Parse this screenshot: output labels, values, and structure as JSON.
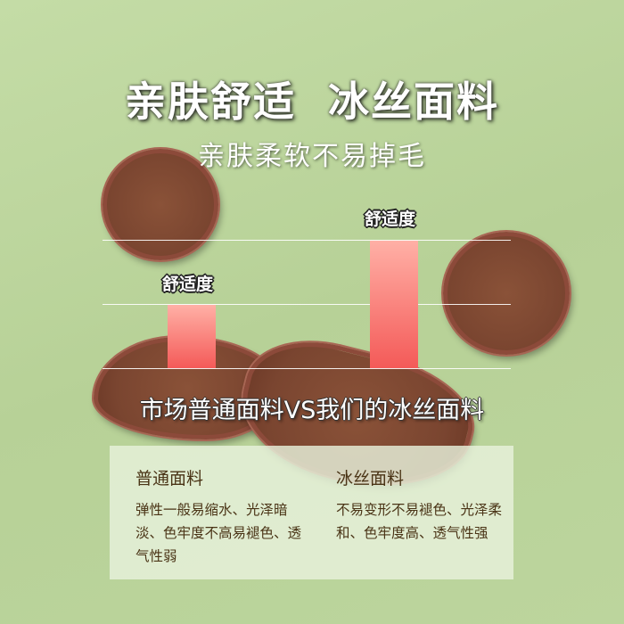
{
  "headline": "亲肤舒适  冰丝面料",
  "subheadline": "亲肤柔软不易掉毛",
  "comparison": {
    "bars": [
      {
        "label": "舒适度",
        "level": 1
      },
      {
        "label": "舒适度",
        "level": 2
      }
    ],
    "bar_color": "#f45a58",
    "caption": "市场普通面料VS我们的冰丝面料"
  },
  "panel": {
    "left": {
      "title": "普通面料",
      "text": "弹性一般易缩水、光泽暗淡、色牢度不高易褪色、透气性弱"
    },
    "right": {
      "title": "冰丝面料",
      "text": "不易变形不易褪色、光泽柔和、色牢度高、透气性强"
    }
  }
}
